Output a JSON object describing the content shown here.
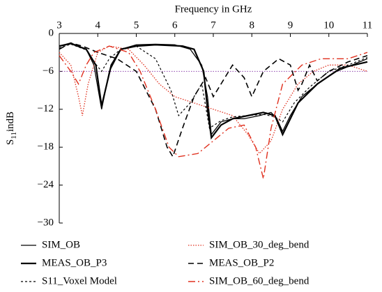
{
  "chart_data": {
    "type": "line",
    "xlabel": "Frequency in GHz",
    "ylabel_parts": [
      "S",
      "11",
      "indB"
    ],
    "xlim": [
      3,
      11
    ],
    "xticks": [
      3,
      4,
      5,
      6,
      7,
      8,
      9,
      10,
      11
    ],
    "ylim": [
      -30,
      0
    ],
    "yticks": [
      0,
      {
        "value": -6,
        "label": "−6"
      },
      {
        "value": -12,
        "label": "−12"
      },
      {
        "value": -18,
        "label": "−18"
      },
      {
        "value": -24,
        "label": "−24"
      },
      {
        "value": -30,
        "label": "−30"
      }
    ],
    "reference_line": {
      "value": -6,
      "color": "#8e44ad",
      "style": "dotted"
    },
    "series": [
      {
        "name": "SIM_OB",
        "color": "#000000",
        "style": "solid",
        "width": 1.3,
        "x": [
          3,
          3.3,
          3.7,
          3.9,
          4.1,
          4.3,
          4.6,
          5,
          5.5,
          6,
          6.4,
          6.7,
          6.85,
          6.95,
          7.2,
          7.5,
          7.8,
          8.2,
          8.5,
          8.65,
          8.8,
          9,
          9.3,
          9.7,
          10.2,
          10.6,
          11
        ],
        "values": [
          -2,
          -1.5,
          -2.5,
          -5,
          -12,
          -6,
          -2.5,
          -1.8,
          -1.7,
          -1.8,
          -2.5,
          -5,
          -10,
          -16,
          -14,
          -13.5,
          -13.5,
          -13,
          -12.5,
          -13.5,
          -15.5,
          -13,
          -10,
          -8,
          -6,
          -5,
          -4
        ]
      },
      {
        "name": "SIM_OB_30_deg_bend",
        "color": "#e0301e",
        "style": "dotted",
        "width": 1.3,
        "x": [
          3,
          3.3,
          3.5,
          3.6,
          3.75,
          4,
          4.3,
          4.8,
          5.2,
          5.6,
          6,
          6.5,
          7,
          7.5,
          7.9,
          8.2,
          8.5,
          8.8,
          9.2,
          9.6,
          10,
          10.5,
          11
        ],
        "values": [
          -3,
          -5,
          -10,
          -13,
          -8,
          -3,
          -2,
          -2.5,
          -5,
          -8,
          -10,
          -11,
          -12,
          -13,
          -16,
          -19,
          -17,
          -12,
          -8,
          -6,
          -5,
          -5,
          -6
        ]
      },
      {
        "name": "MEAS_OB_P3",
        "color": "#000000",
        "style": "solid",
        "width": 2.2,
        "x": [
          3,
          3.3,
          3.7,
          3.95,
          4.1,
          4.35,
          4.6,
          5,
          5.5,
          6.2,
          6.5,
          6.75,
          6.85,
          6.95,
          7.2,
          7.5,
          7.9,
          8.3,
          8.6,
          8.8,
          9.2,
          9.7,
          10.3,
          11
        ],
        "values": [
          -2,
          -1.6,
          -2.5,
          -5,
          -11.5,
          -5,
          -2.5,
          -2,
          -1.8,
          -2,
          -2.5,
          -6,
          -12,
          -16.5,
          -14.5,
          -13.5,
          -13,
          -12.5,
          -13,
          -16,
          -11,
          -8,
          -5.5,
          -4.5
        ]
      },
      {
        "name": "MEAS_OB_P2",
        "color": "#000000",
        "style": "dashed",
        "width": 1.6,
        "x": [
          3,
          3.3,
          3.6,
          4,
          4.5,
          5,
          5.5,
          5.8,
          5.95,
          6.2,
          6.5,
          6.8,
          7,
          7.3,
          7.5,
          7.8,
          8,
          8.3,
          8.7,
          9,
          9.2,
          9.3,
          9.5,
          9.7,
          10,
          10.5,
          11
        ],
        "values": [
          -2.5,
          -1.5,
          -2,
          -3,
          -4,
          -6,
          -12,
          -18,
          -19.5,
          -15,
          -10,
          -7,
          -10,
          -7,
          -5,
          -7,
          -10,
          -6,
          -4,
          -5,
          -9,
          -8,
          -5,
          -7.5,
          -6,
          -4.5,
          -3.5
        ]
      },
      {
        "name": "S11_Voxel Model",
        "color": "#000000",
        "style": "shortdash",
        "width": 1.2,
        "x": [
          3,
          3.3,
          3.7,
          3.9,
          4.1,
          4.3,
          4.6,
          5,
          5.5,
          5.9,
          6.1,
          6.4,
          6.7,
          6.9,
          7.2,
          7.5,
          7.9,
          8.3,
          8.6,
          8.8,
          9.1,
          9.5,
          10,
          10.5,
          11
        ],
        "values": [
          -2.3,
          -1.7,
          -2.6,
          -4.5,
          -6,
          -4,
          -2.5,
          -2,
          -4,
          -9,
          -13,
          -11,
          -8,
          -15,
          -13.8,
          -13.2,
          -13,
          -12.8,
          -13.2,
          -14,
          -11,
          -8.5,
          -6,
          -5,
          -3.8
        ]
      },
      {
        "name": "SIM_OB_60_deg_bend",
        "color": "#e0301e",
        "style": "dashdot",
        "width": 1.4,
        "x": [
          3,
          3.3,
          3.5,
          3.7,
          3.9,
          4.3,
          4.8,
          5.1,
          5.5,
          5.85,
          6.1,
          6.6,
          7,
          7.4,
          7.8,
          8.1,
          8.3,
          8.5,
          8.8,
          9.3,
          9.8,
          10.5,
          11
        ],
        "values": [
          -3.5,
          -6,
          -8,
          -5,
          -3,
          -2,
          -3,
          -6,
          -12,
          -18,
          -19.5,
          -19,
          -17,
          -15,
          -14.5,
          -18,
          -23,
          -15,
          -8,
          -5,
          -4,
          -4,
          -3
        ]
      }
    ]
  }
}
